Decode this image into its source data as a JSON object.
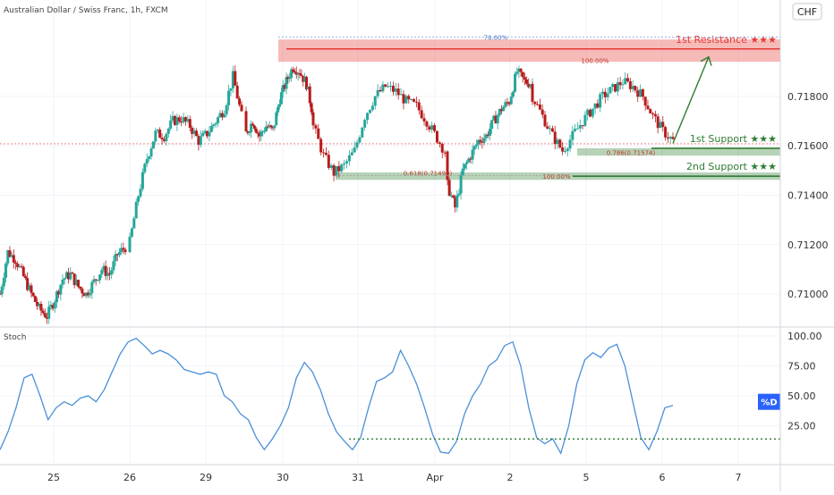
{
  "header": {
    "symbol_title": "Australian Dollar / Swiss Franc, 1h, FXCM",
    "currency_badge": "CHF",
    "stoch_label": "Stoch",
    "d_badge": "%D"
  },
  "colors": {
    "up": "#26a69a",
    "down": "#b71c1c",
    "resistance": "#e53935",
    "support": "#2e7d32",
    "stoch_line": "#4a90d9",
    "grid": "#f0f3fa"
  },
  "chart_data": [
    {
      "type": "candlestick",
      "title": "Australian Dollar / Swiss Franc, 1h, FXCM",
      "y_unit": "CHF",
      "ylim": [
        0.7087,
        0.7219
      ],
      "y_ticks": [
        "0.71800",
        "0.71600",
        "0.71400",
        "0.71200",
        "0.71000"
      ],
      "x_ticks": [
        "25",
        "26",
        "29",
        "30",
        "31",
        "Apr",
        "2",
        "5",
        "6",
        "7"
      ],
      "grid": true,
      "current_price_line": 0.71608,
      "close_path": [
        [
          0.71,
          0.7117,
          0.7114,
          0.7107,
          0.71,
          0.7094,
          0.7091,
          0.7098,
          0.7106,
          0.7108,
          0.7103,
          0.71,
          0.7105,
          0.711,
          0.7108,
          0.7116,
          0.7119
        ],
        [
          0.7121,
          0.714,
          0.7155,
          0.7165,
          0.7164,
          0.717,
          0.7171,
          0.7168,
          0.7162,
          0.7165,
          0.717,
          0.7175,
          0.7188,
          0.7172
        ],
        [
          0.7165,
          0.717,
          0.7164,
          0.7168,
          0.7166,
          0.7179,
          0.7186,
          0.7192,
          0.719,
          0.7185,
          0.7172
        ],
        [
          0.7168,
          0.7156,
          0.7149,
          0.7152,
          0.7158,
          0.7172,
          0.718,
          0.7184,
          0.7182,
          0.7178,
          0.7176,
          0.717,
          0.7163,
          0.7156
        ],
        [
          0.7144,
          0.7135,
          0.715,
          0.7156,
          0.7162,
          0.7164,
          0.717,
          0.7175,
          0.7178,
          0.719,
          0.7186,
          0.7185
        ],
        [
          0.718,
          0.7172,
          0.7164,
          0.7158,
          0.7164,
          0.717,
          0.7175,
          0.718,
          0.7183,
          0.7186,
          0.7184,
          0.718,
          0.7172,
          0.7166,
          0.7162
        ]
      ],
      "levels": [
        {
          "name": "1st Resistance",
          "stars": "★★★",
          "value": "0.71992",
          "kind": "resistance",
          "y": 0.71992
        },
        {
          "name": "1st Support",
          "stars": "★★★",
          "value": "0.71590",
          "kind": "support",
          "y": 0.7159
        },
        {
          "name": "2nd Support",
          "stars": "★★★",
          "value": "0.71477",
          "kind": "support",
          "y": 0.71477
        }
      ],
      "annotations": [
        {
          "text": "78.60%",
          "y": 0.7204
        },
        {
          "text": "100.00%",
          "y": 0.71945
        },
        {
          "text": "0.786(0.71574)",
          "y": 0.71574
        },
        {
          "text": "0.618(0.71490)",
          "y": 0.7149
        },
        {
          "text": "100.00%",
          "y": 0.71477
        }
      ],
      "zones": [
        {
          "kind": "resistance",
          "from": 0.7194,
          "to": 0.7203
        },
        {
          "kind": "support",
          "from": 0.7156,
          "to": 0.7159
        },
        {
          "kind": "support",
          "from": 0.71462,
          "to": 0.71492
        }
      ]
    },
    {
      "type": "line",
      "title": "Stoch",
      "series": [
        {
          "name": "%D",
          "values": [
            5,
            20,
            40,
            65,
            68,
            50,
            30,
            40,
            45,
            42,
            48,
            50,
            45,
            55,
            70,
            85,
            95,
            98,
            92,
            85,
            88,
            85,
            80,
            72,
            70,
            68,
            70,
            68,
            50,
            45,
            35,
            30,
            15,
            5,
            14,
            25,
            40,
            65,
            78,
            70,
            55,
            35,
            20,
            12,
            5,
            15,
            40,
            62,
            65,
            70,
            88,
            75,
            60,
            40,
            18,
            3,
            2,
            12,
            35,
            50,
            60,
            75,
            80,
            92,
            95,
            75,
            40,
            15,
            10,
            14,
            2,
            25,
            60,
            80,
            86,
            82,
            90,
            93,
            75,
            45,
            15,
            5,
            20,
            40,
            42
          ]
        }
      ],
      "ylim": [
        0,
        100
      ],
      "y_ticks": [
        "100.00",
        "75.00",
        "50.00",
        "25.00"
      ],
      "marker_level": {
        "value": "13.95",
        "y": 13.95
      },
      "d_value": "%D"
    }
  ]
}
